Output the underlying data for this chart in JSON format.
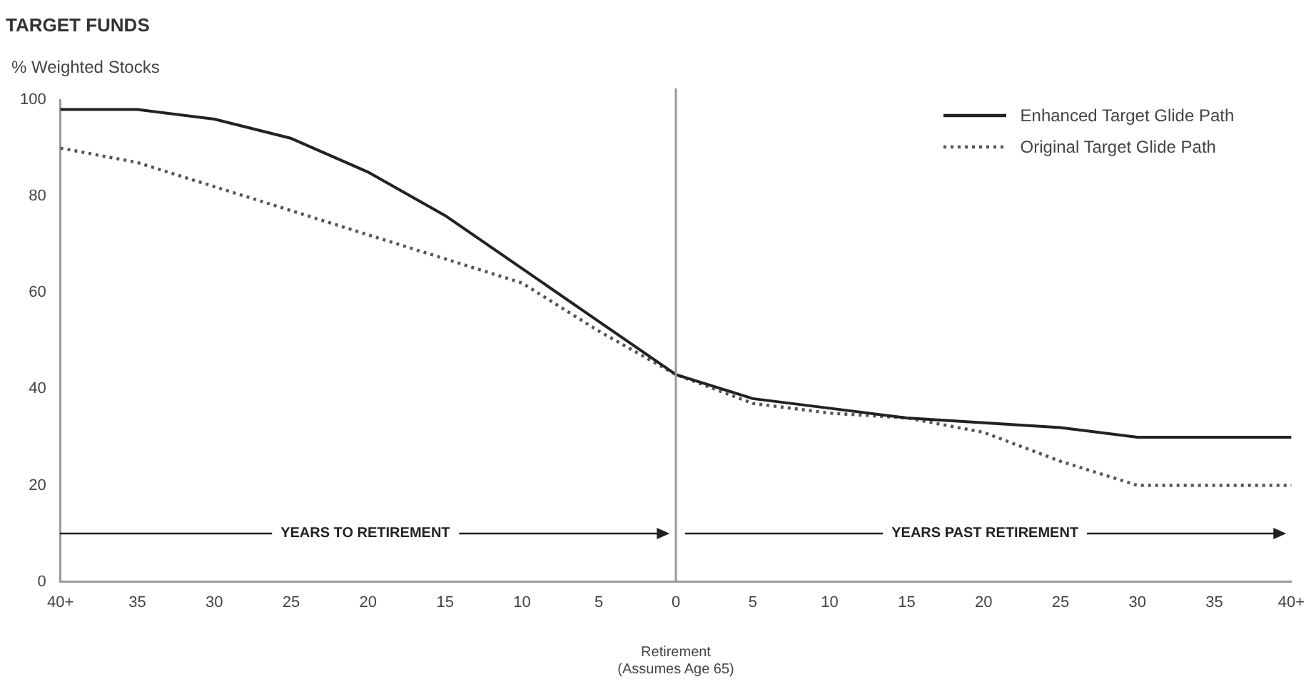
{
  "chart_data": {
    "type": "line",
    "title": "TARGET FUNDS",
    "ylabel": "% Weighted Stocks",
    "xlabel": "Retirement\n(Assumes Age 65)",
    "categories": [
      "40+",
      "35",
      "30",
      "25",
      "20",
      "15",
      "10",
      "5",
      "0",
      "5",
      "10",
      "15",
      "20",
      "25",
      "30",
      "35",
      "40+"
    ],
    "series": [
      {
        "name": "Enhanced Target Glide Path",
        "color": "#222222",
        "line_style": "solid",
        "values": [
          98,
          98,
          96,
          92,
          85,
          76,
          65,
          54,
          43,
          38,
          36,
          34,
          33,
          32,
          30,
          30,
          30
        ]
      },
      {
        "name": "Original Target Glide Path",
        "color": "#555555",
        "line_style": "dotted",
        "values": [
          90,
          87,
          82,
          77,
          72,
          67,
          62,
          52,
          43,
          37,
          35,
          34,
          31,
          25,
          20,
          20,
          20
        ]
      }
    ],
    "ylim": [
      0,
      100
    ],
    "yticks": [
      0,
      20,
      40,
      60,
      80,
      100
    ],
    "grid": false,
    "legend": "top right",
    "marker": "none",
    "ref_lines": [
      {
        "axis": "x",
        "value": "0",
        "color": "#999999"
      }
    ],
    "annotations": [
      "YEARS TO RETIREMENT",
      "YEARS PAST RETIREMENT"
    ]
  }
}
